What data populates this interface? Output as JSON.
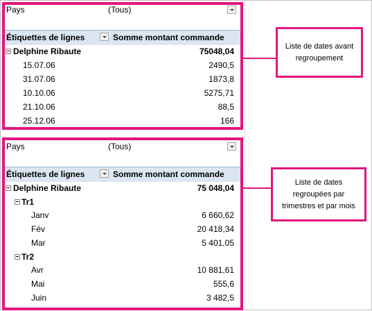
{
  "panels": [
    {
      "filter": {
        "label": "Pays",
        "value": "(Tous)"
      },
      "header": {
        "rows_label": "Étiquettes de lignes",
        "value_label": "Somme montant commande"
      },
      "owner": {
        "label": "Delphine Ribaute",
        "value": "75048,04"
      },
      "rows": [
        {
          "label": "15.07.06",
          "value": "2490,5"
        },
        {
          "label": "31.07.06",
          "value": "1873,8"
        },
        {
          "label": "10.10.06",
          "value": "5275,71"
        },
        {
          "label": "21.10.06",
          "value": "88,5"
        },
        {
          "label": "25.12.06",
          "value": "166"
        }
      ],
      "callout": "Liste de dates avant regroupement"
    },
    {
      "filter": {
        "label": "Pays",
        "value": "(Tous)"
      },
      "header": {
        "rows_label": "Étiquettes de lignes",
        "value_label": "Somme montant commande"
      },
      "owner": {
        "label": "Delphine Ribaute",
        "value": "75 048,04"
      },
      "groups": [
        {
          "label": "Tr1",
          "rows": [
            {
              "label": "Janv",
              "value": "6 660,62"
            },
            {
              "label": "Fév",
              "value": "20 418,34"
            },
            {
              "label": "Mar",
              "value": "5 401,05"
            }
          ]
        },
        {
          "label": "Tr2",
          "rows": [
            {
              "label": "Avr",
              "value": "10 881,61"
            },
            {
              "label": "Mai",
              "value": "555,6"
            },
            {
              "label": "Juin",
              "value": "3 482,5"
            }
          ]
        }
      ],
      "callout": "Liste de dates regroupées par trimestres et par mois"
    }
  ]
}
